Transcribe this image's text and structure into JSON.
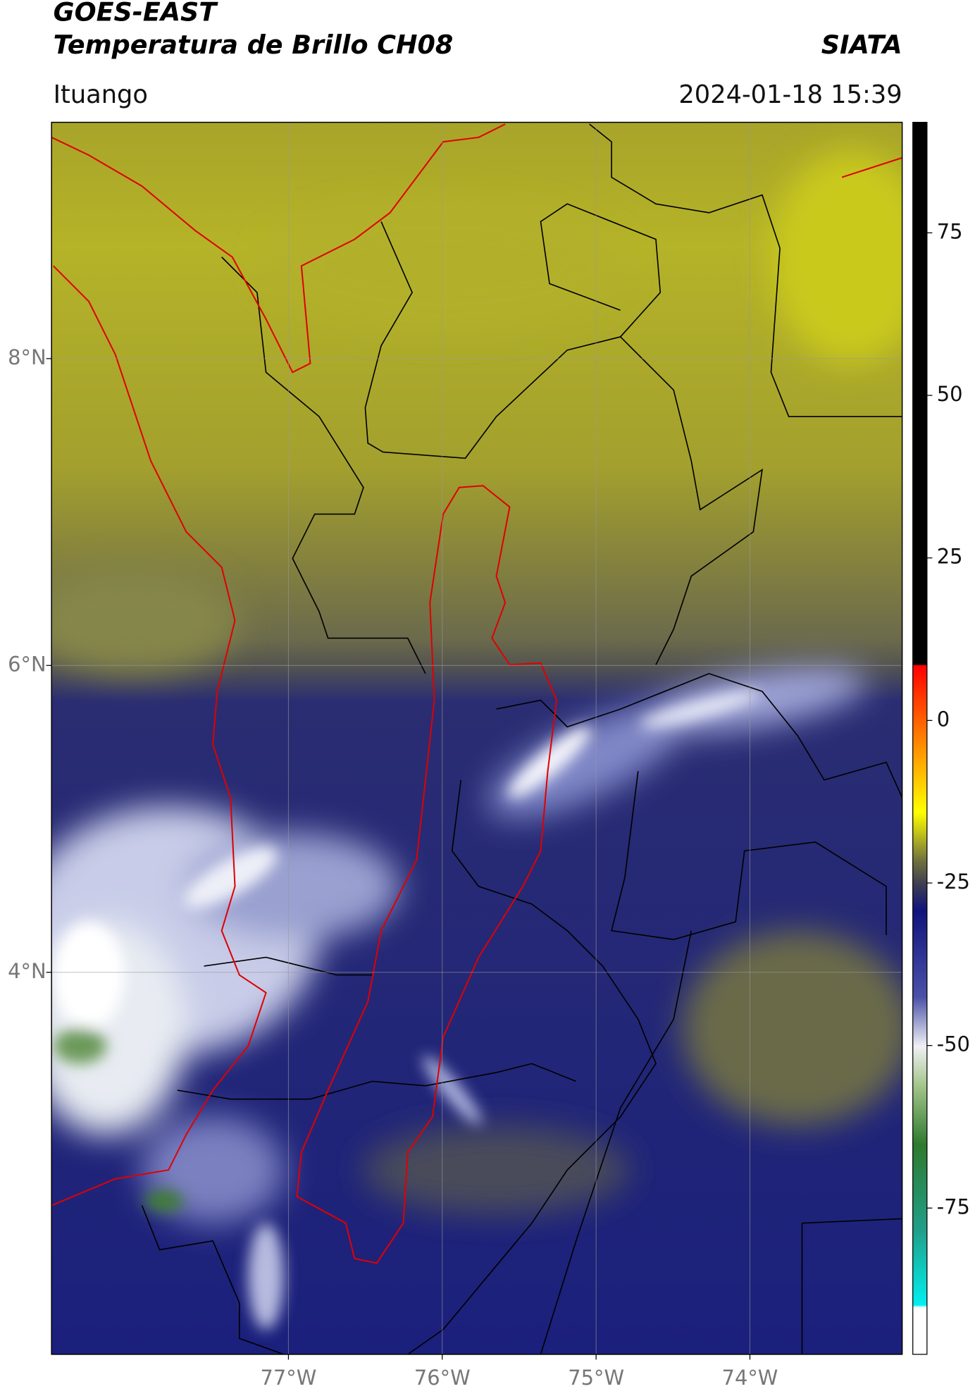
{
  "header": {
    "title_line1": "GOES-EAST",
    "title_line2": "Temperatura de Brillo CH08",
    "source": "SIATA",
    "location": "Ituango",
    "datetime": "2024-01-18 15:39"
  },
  "map": {
    "lonlim": [
      -78.54,
      -73.01
    ],
    "latlim": [
      1.51,
      9.54
    ],
    "grid": true,
    "lonticks": [
      {
        "value": -77,
        "label": "77°W"
      },
      {
        "value": -76,
        "label": "76°W"
      },
      {
        "value": -75,
        "label": "75°W"
      },
      {
        "value": -74,
        "label": "74°W"
      }
    ],
    "latticks": [
      {
        "value": 8,
        "label": "8°N"
      },
      {
        "value": 6,
        "label": "6°N"
      },
      {
        "value": 4,
        "label": "4°N"
      }
    ]
  },
  "colorbar": {
    "lim": [
      -97.5,
      92
    ],
    "ticks": [
      75,
      50,
      25,
      0,
      -25,
      -50,
      -75
    ]
  }
}
